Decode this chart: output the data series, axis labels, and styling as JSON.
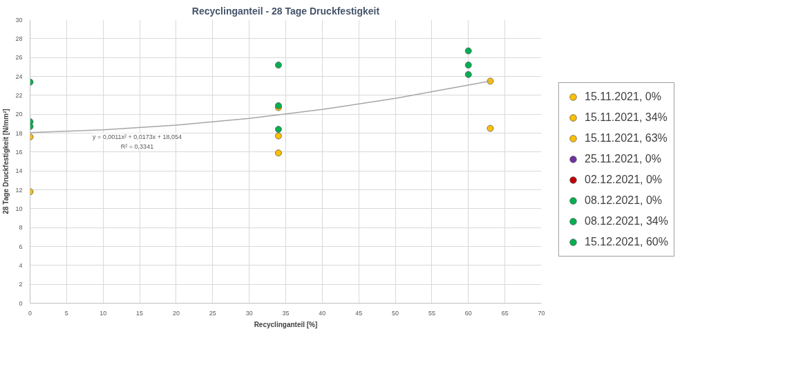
{
  "chart_data": {
    "type": "scatter",
    "title": "Recyclinganteil - 28 Tage Druckfestigkeit",
    "xlabel": "Recyclinganteil [%]",
    "ylabel": "28 Tage Druckfestigkeit [N/mm²]",
    "xlim": [
      0,
      70
    ],
    "xticks": [
      0,
      5,
      10,
      15,
      20,
      25,
      30,
      35,
      40,
      45,
      50,
      55,
      60,
      65,
      70
    ],
    "ylim": [
      0,
      30
    ],
    "yticks": [
      0,
      2,
      4,
      6,
      8,
      10,
      12,
      14,
      16,
      18,
      20,
      22,
      24,
      26,
      28,
      30
    ],
    "grid": true,
    "legend": "right",
    "marker": "circle",
    "series": [
      {
        "name": "15.11.2021, 0%",
        "color": "#ffc000",
        "x": [
          0,
          0
        ],
        "values": [
          17.6,
          11.8
        ]
      },
      {
        "name": "15.11.2021, 34%",
        "color": "#ffc000",
        "x": [
          34,
          34,
          34
        ],
        "values": [
          20.7,
          17.7,
          15.9
        ]
      },
      {
        "name": "15.11.2021, 63%",
        "color": "#ffc000",
        "x": [
          63,
          63
        ],
        "values": [
          23.5,
          18.5
        ]
      },
      {
        "name": "25.11.2021, 0%",
        "color": "#7030a0",
        "x": [
          null
        ],
        "values": [
          null
        ]
      },
      {
        "name": "02.12.2021, 0%",
        "color": "#c00000",
        "x": [
          null
        ],
        "values": [
          null
        ]
      },
      {
        "name": "08.12.2021, 0%",
        "color": "#00b050",
        "x": [
          0,
          0,
          0
        ],
        "values": [
          23.4,
          19.2,
          18.7
        ]
      },
      {
        "name": "08.12.2021, 34%",
        "color": "#00b050",
        "x": [
          34,
          34,
          34
        ],
        "values": [
          25.2,
          20.9,
          18.4
        ]
      },
      {
        "name": "15.12.2021, 60%",
        "color": "#00b050",
        "x": [
          60,
          60,
          60
        ],
        "values": [
          26.7,
          25.2,
          24.2
        ]
      },
      {
        "type": "line",
        "color": "#a6a6a6",
        "marker": "none",
        "x": [
          0,
          10,
          20,
          30,
          40,
          50,
          63
        ],
        "values": [
          18.05,
          18.34,
          18.84,
          19.56,
          20.51,
          21.67,
          23.51
        ]
      }
    ],
    "annotations": [
      "y = 0,0011x² + 0,0173x + 18,054",
      "R² = 0,3341"
    ]
  }
}
